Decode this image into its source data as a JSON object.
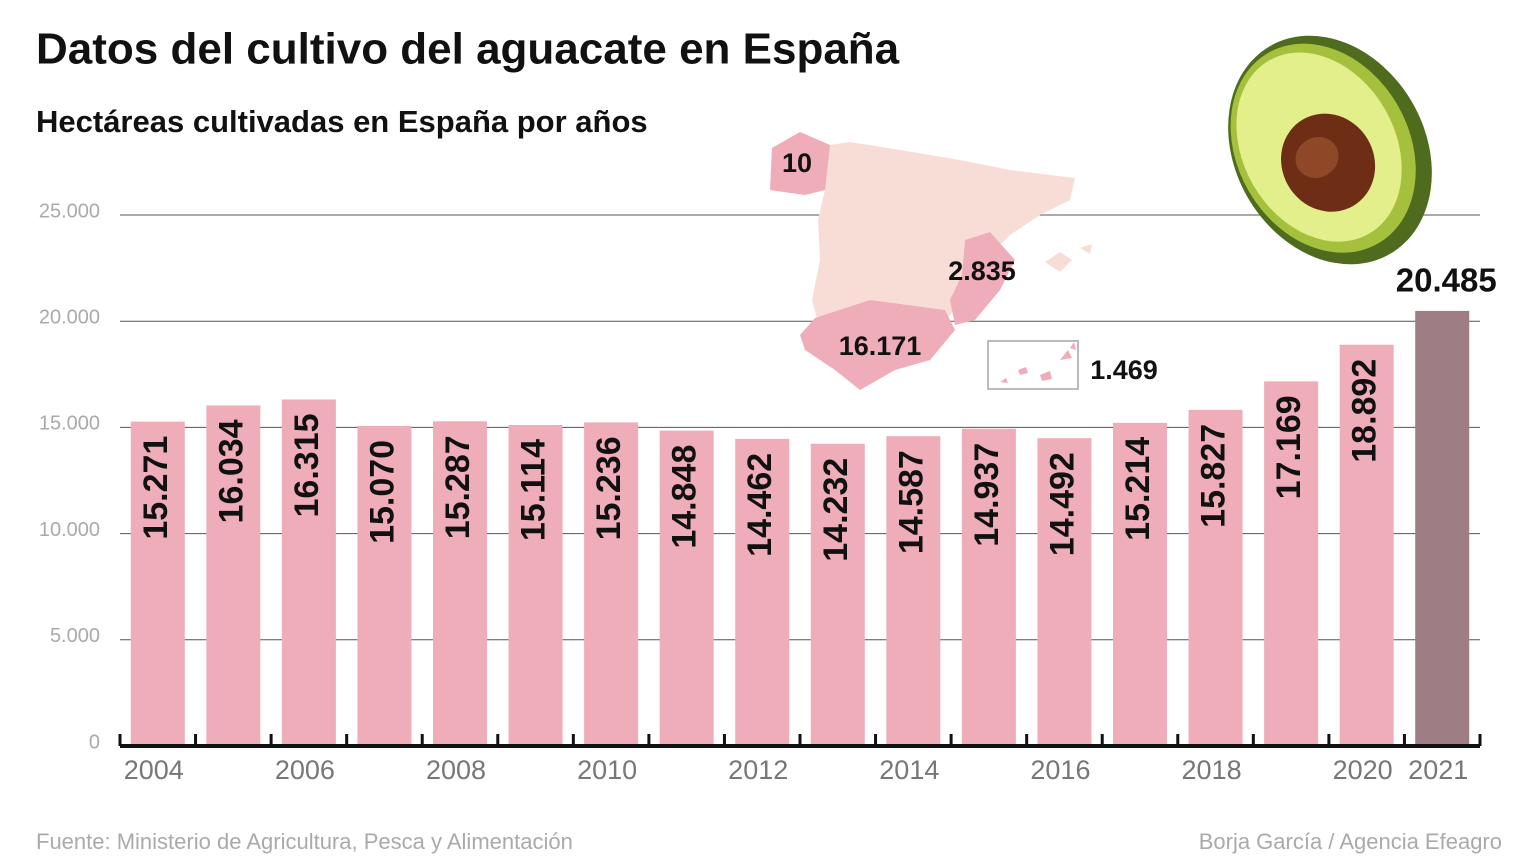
{
  "chart_data": {
    "type": "bar",
    "title": "Datos del cultivo del aguacate en España",
    "subtitle": "Hectáreas cultivadas en España por años",
    "categories": [
      "2004",
      null,
      "2006",
      null,
      "2008",
      null,
      "2010",
      null,
      "2012",
      null,
      "2014",
      null,
      "2016",
      null,
      "2018",
      null,
      "2020",
      "2021"
    ],
    "values": [
      15271,
      16034,
      16315,
      15070,
      15287,
      15114,
      15236,
      14848,
      14462,
      14232,
      14587,
      14937,
      14492,
      15214,
      15827,
      17169,
      18892,
      20485
    ],
    "value_labels": [
      "15.271",
      "16.034",
      "16.315",
      "15.070",
      "15.287",
      "15.114",
      "15.236",
      "14.848",
      "14.462",
      "14.232",
      "14.587",
      "14.937",
      "14.492",
      "15.214",
      "15.827",
      "17.169",
      "18.892",
      "20.485"
    ],
    "colors": [
      "#eeadb8",
      "#eeadb8",
      "#eeadb8",
      "#eeadb8",
      "#eeadb8",
      "#eeadb8",
      "#eeadb8",
      "#eeadb8",
      "#eeadb8",
      "#eeadb8",
      "#eeadb8",
      "#eeadb8",
      "#eeadb8",
      "#eeadb8",
      "#eeadb8",
      "#eeadb8",
      "#eeadb8",
      "#9e7d85"
    ],
    "ylim": [
      0,
      25000
    ],
    "yticks": [
      0,
      {
        "value": 5000,
        "label": "5.000"
      },
      {
        "value": 10000,
        "label": "10.000"
      },
      {
        "value": 15000,
        "label": "15.000"
      },
      {
        "value": 20000,
        "label": "20.000"
      },
      {
        "value": 25000,
        "label": "25.000"
      }
    ],
    "grid": true,
    "map_labels": [
      "10",
      "2.835",
      "16.171",
      "1.469"
    ],
    "source": "Fuente: Ministerio de Agricultura, Pesca y Alimentación",
    "credit": "Borja García / Agencia Efeagro"
  }
}
